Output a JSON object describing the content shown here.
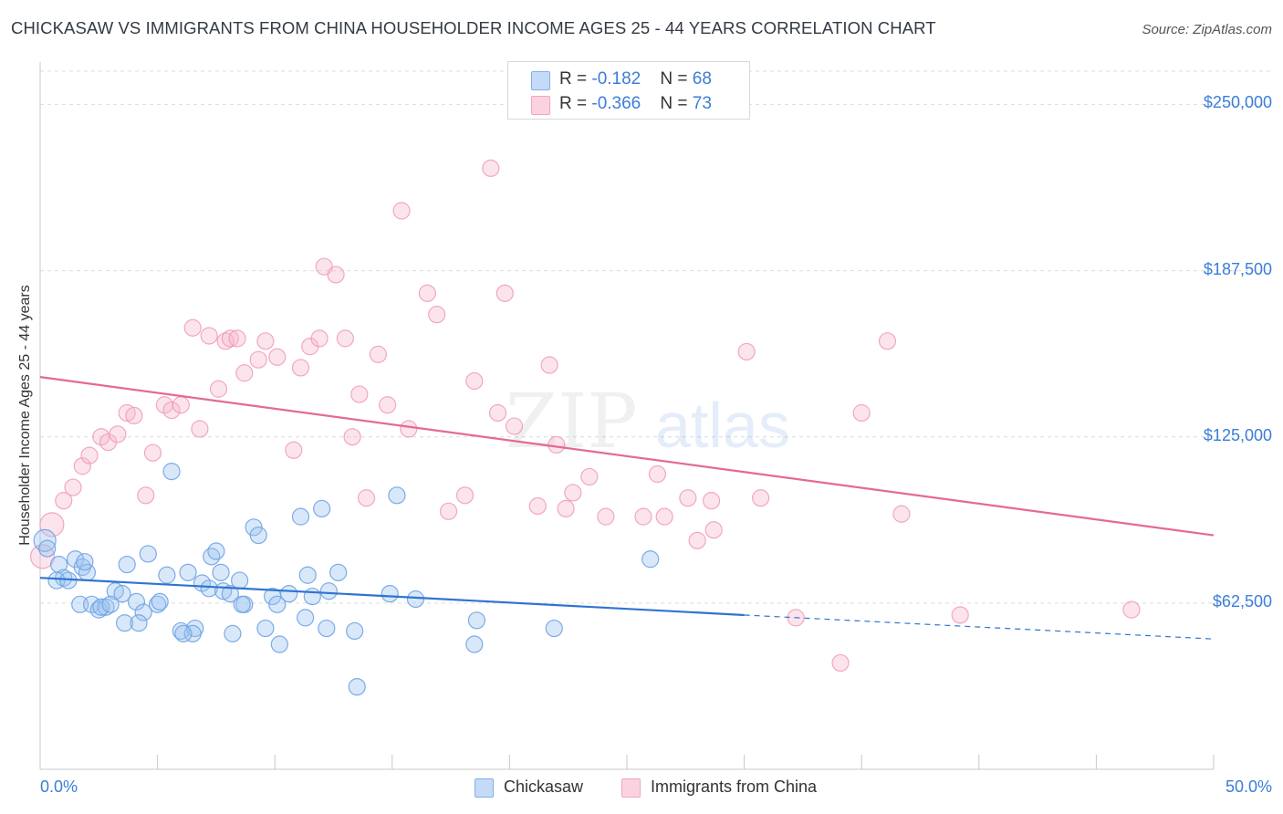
{
  "title": "CHICKASAW VS IMMIGRANTS FROM CHINA HOUSEHOLDER INCOME AGES 25 - 44 YEARS CORRELATION CHART",
  "source": "Source: ZipAtlas.com",
  "legend_top": {
    "row1": {
      "r_label": "R = ",
      "r_value": "-0.182",
      "n_label": "N = ",
      "n_value": "68"
    },
    "row2": {
      "r_label": "R = ",
      "r_value": "-0.366",
      "n_label": "N = ",
      "n_value": "73"
    }
  },
  "legend_bottom": {
    "s1": "Chickasaw",
    "s2": "Immigrants from China"
  },
  "watermark": {
    "zip": "ZIP",
    "atlas": "atlas"
  },
  "chart_data": {
    "type": "scatter",
    "title": "CHICKASAW VS IMMIGRANTS FROM CHINA HOUSEHOLDER INCOME AGES 25 - 44 YEARS CORRELATION CHART",
    "xlabel": "",
    "ylabel": "Householder Income Ages 25 - 44 years",
    "xlim": [
      0,
      50
    ],
    "ylim": [
      0,
      262500
    ],
    "x_tick_labels": [
      "0.0%",
      "50.0%"
    ],
    "y_ticks": [
      62500,
      125000,
      187500,
      250000
    ],
    "y_tick_labels": [
      "$62,500",
      "$125,000",
      "$187,500",
      "$250,000"
    ],
    "grid": true,
    "legend_position": "top-center",
    "colors": {
      "chickasaw": "#7fb0ea",
      "china": "#f2a6bf",
      "blue_line": "#2f74d0",
      "pink_line": "#e46a93",
      "tick_text": "#3b7dd8"
    },
    "series": [
      {
        "name": "Chickasaw",
        "color": "#7fb0ea",
        "r": -0.182,
        "n": 68,
        "trend": {
          "x0": 0,
          "y0": 72000,
          "x1": 30,
          "y1": 58000,
          "dash_x1": 50,
          "dash_y1": 49000
        },
        "points": [
          [
            0.2,
            86000
          ],
          [
            0.3,
            83000
          ],
          [
            0.8,
            77000
          ],
          [
            1.0,
            72000
          ],
          [
            0.7,
            71000
          ],
          [
            1.2,
            71000
          ],
          [
            1.5,
            79000
          ],
          [
            1.8,
            76000
          ],
          [
            2.0,
            74000
          ],
          [
            1.9,
            78000
          ],
          [
            1.7,
            62000
          ],
          [
            2.2,
            62000
          ],
          [
            2.5,
            60000
          ],
          [
            2.8,
            61000
          ],
          [
            2.6,
            61000
          ],
          [
            3.2,
            67000
          ],
          [
            3.5,
            66000
          ],
          [
            3.7,
            77000
          ],
          [
            3.6,
            55000
          ],
          [
            4.1,
            63000
          ],
          [
            4.4,
            59000
          ],
          [
            4.6,
            81000
          ],
          [
            5.0,
            62000
          ],
          [
            5.1,
            63000
          ],
          [
            5.4,
            73000
          ],
          [
            5.6,
            112000
          ],
          [
            6.0,
            52000
          ],
          [
            6.3,
            74000
          ],
          [
            6.6,
            53000
          ],
          [
            6.5,
            51000
          ],
          [
            6.9,
            70000
          ],
          [
            7.2,
            68000
          ],
          [
            7.3,
            80000
          ],
          [
            7.5,
            82000
          ],
          [
            7.8,
            67000
          ],
          [
            7.7,
            74000
          ],
          [
            8.1,
            66000
          ],
          [
            8.2,
            51000
          ],
          [
            8.5,
            71000
          ],
          [
            8.7,
            62000
          ],
          [
            8.6,
            62000
          ],
          [
            9.1,
            91000
          ],
          [
            9.3,
            88000
          ],
          [
            9.6,
            53000
          ],
          [
            9.9,
            65000
          ],
          [
            10.2,
            47000
          ],
          [
            10.1,
            62000
          ],
          [
            10.6,
            66000
          ],
          [
            11.1,
            95000
          ],
          [
            11.3,
            57000
          ],
          [
            11.4,
            73000
          ],
          [
            11.6,
            65000
          ],
          [
            12.0,
            98000
          ],
          [
            12.2,
            53000
          ],
          [
            12.3,
            67000
          ],
          [
            12.7,
            74000
          ],
          [
            13.4,
            52000
          ],
          [
            13.5,
            31000
          ],
          [
            14.9,
            66000
          ],
          [
            15.2,
            103000
          ],
          [
            16.0,
            64000
          ],
          [
            18.5,
            47000
          ],
          [
            18.6,
            56000
          ],
          [
            26.0,
            79000
          ],
          [
            21.9,
            53000
          ],
          [
            3.0,
            62000
          ],
          [
            4.2,
            55000
          ],
          [
            6.1,
            51000
          ]
        ]
      },
      {
        "name": "Immigrants from China",
        "color": "#f2a6bf",
        "r": -0.366,
        "n": 73,
        "trend": {
          "x0": 0,
          "y0": 147500,
          "x1": 50,
          "y1": 88000
        },
        "points": [
          [
            0.1,
            80000
          ],
          [
            0.5,
            92000
          ],
          [
            1.0,
            101000
          ],
          [
            1.4,
            106000
          ],
          [
            1.8,
            114000
          ],
          [
            2.1,
            118000
          ],
          [
            2.6,
            125000
          ],
          [
            2.9,
            123000
          ],
          [
            3.3,
            126000
          ],
          [
            3.7,
            134000
          ],
          [
            4.0,
            133000
          ],
          [
            4.5,
            103000
          ],
          [
            4.8,
            119000
          ],
          [
            5.3,
            137000
          ],
          [
            5.6,
            135000
          ],
          [
            6.0,
            137000
          ],
          [
            6.5,
            166000
          ],
          [
            6.8,
            128000
          ],
          [
            7.2,
            163000
          ],
          [
            7.6,
            143000
          ],
          [
            7.9,
            161000
          ],
          [
            8.1,
            162000
          ],
          [
            8.4,
            162000
          ],
          [
            8.7,
            149000
          ],
          [
            9.3,
            154000
          ],
          [
            9.6,
            161000
          ],
          [
            10.1,
            155000
          ],
          [
            10.8,
            120000
          ],
          [
            11.1,
            151000
          ],
          [
            11.5,
            159000
          ],
          [
            11.9,
            162000
          ],
          [
            12.1,
            189000
          ],
          [
            12.6,
            186000
          ],
          [
            13.0,
            162000
          ],
          [
            13.3,
            125000
          ],
          [
            13.6,
            141000
          ],
          [
            13.9,
            102000
          ],
          [
            14.4,
            156000
          ],
          [
            14.8,
            137000
          ],
          [
            15.4,
            210000
          ],
          [
            15.7,
            128000
          ],
          [
            16.5,
            179000
          ],
          [
            16.9,
            171000
          ],
          [
            17.4,
            97000
          ],
          [
            18.1,
            103000
          ],
          [
            18.5,
            146000
          ],
          [
            19.2,
            226000
          ],
          [
            19.5,
            134000
          ],
          [
            19.8,
            179000
          ],
          [
            20.2,
            129000
          ],
          [
            21.2,
            99000
          ],
          [
            21.7,
            152000
          ],
          [
            22.0,
            122000
          ],
          [
            22.4,
            98000
          ],
          [
            22.7,
            104000
          ],
          [
            23.4,
            110000
          ],
          [
            24.1,
            95000
          ],
          [
            25.7,
            95000
          ],
          [
            26.3,
            111000
          ],
          [
            26.6,
            95000
          ],
          [
            27.6,
            102000
          ],
          [
            28.0,
            86000
          ],
          [
            28.7,
            90000
          ],
          [
            28.6,
            101000
          ],
          [
            30.1,
            157000
          ],
          [
            30.7,
            102000
          ],
          [
            32.2,
            57000
          ],
          [
            34.1,
            40000
          ],
          [
            35.0,
            134000
          ],
          [
            36.1,
            161000
          ],
          [
            36.7,
            96000
          ],
          [
            39.2,
            58000
          ],
          [
            46.5,
            60000
          ]
        ]
      }
    ]
  }
}
